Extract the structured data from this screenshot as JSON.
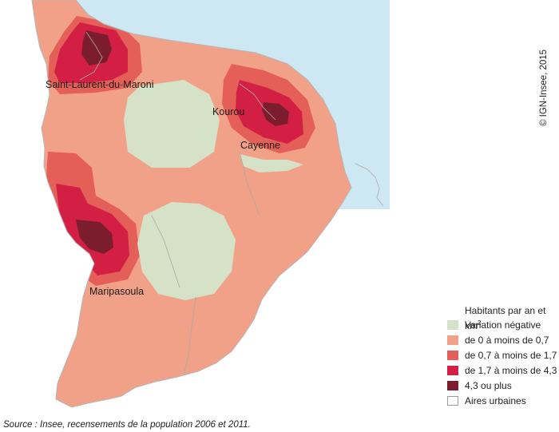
{
  "colors": {
    "sea": "#cde7f3",
    "border": "#b5b5b5",
    "negative": "#d5e2c7",
    "c1": "#f2a189",
    "c2": "#e35f57",
    "c3": "#d31f43",
    "c4": "#7b1d2c",
    "urban_outline": "#a9a9a9"
  },
  "cities": {
    "saint_laurent": "Saint-Laurent-du-Maroni",
    "kourou": "Kourou",
    "cayenne": "Cayenne",
    "maripasoula": "Maripasoula"
  },
  "copyright": "© IGN-Insee, 2015",
  "legend": {
    "title_main": "Habitants par an et km",
    "title_sup": "2",
    "items": [
      {
        "label": "Variation négative",
        "color": "#d5e2c7"
      },
      {
        "label": "de 0 à moins de 0,7",
        "color": "#f2a189"
      },
      {
        "label": "de 0,7 à moins de 1,7",
        "color": "#e35f57"
      },
      {
        "label": "de 1,7 à moins de 4,3",
        "color": "#d31f43"
      },
      {
        "label": "4,3 ou plus",
        "color": "#7b1d2c"
      },
      {
        "label": "Aires urbaines",
        "color": "#ffffff",
        "outline": true
      }
    ]
  },
  "source": "Source : Insee, recensements de la population 2006 et 2011."
}
